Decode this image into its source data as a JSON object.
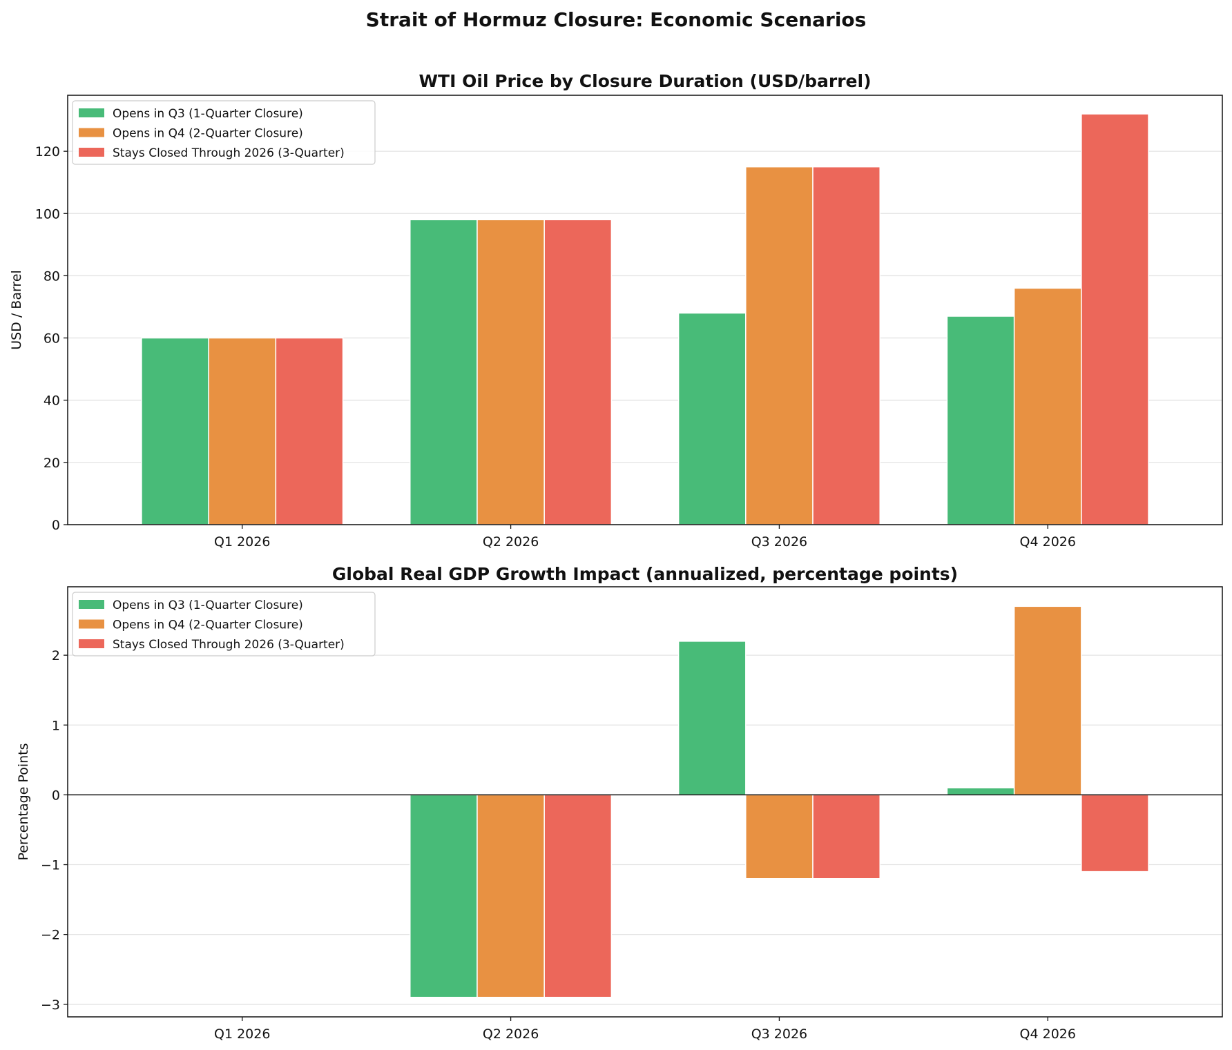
{
  "figure": {
    "title": "Strait of Hormuz Closure: Economic Scenarios"
  },
  "colors": {
    "green": "#48bb78",
    "orange": "#e89142",
    "red": "#ec675a"
  },
  "chart_data": [
    {
      "type": "bar",
      "title": "WTI Oil Price by Closure Duration (USD/barrel)",
      "xlabel": "",
      "ylabel": "USD / Barrel",
      "categories": [
        "Q1 2026",
        "Q2 2026",
        "Q3 2026",
        "Q4 2026"
      ],
      "ylim": [
        0,
        138
      ],
      "yticks": [
        0,
        20,
        40,
        60,
        80,
        100,
        120
      ],
      "grid": "horizontal",
      "legend": "top-left",
      "series": [
        {
          "name": "Opens in Q3 (1-Quarter Closure)",
          "color": "#48bb78",
          "values": [
            60,
            98,
            68,
            67
          ]
        },
        {
          "name": "Opens in Q4 (2-Quarter Closure)",
          "color": "#e89142",
          "values": [
            60,
            98,
            115,
            76
          ]
        },
        {
          "name": "Stays Closed Through 2026 (3-Quarter)",
          "color": "#ec675a",
          "values": [
            60,
            98,
            115,
            132
          ]
        }
      ]
    },
    {
      "type": "bar",
      "title": "Global Real GDP Growth Impact (annualized, percentage points)",
      "xlabel": "",
      "ylabel": "Percentage Points",
      "categories": [
        "Q1 2026",
        "Q2 2026",
        "Q3 2026",
        "Q4 2026"
      ],
      "ylim": [
        -3.18,
        2.98
      ],
      "yticks": [
        -3,
        -2,
        -1,
        0,
        1,
        2
      ],
      "grid": "horizontal",
      "zero_line": true,
      "legend": "top-left",
      "series": [
        {
          "name": "Opens in Q3 (1-Quarter Closure)",
          "color": "#48bb78",
          "values": [
            0,
            -2.9,
            2.2,
            0.1
          ]
        },
        {
          "name": "Opens in Q4 (2-Quarter Closure)",
          "color": "#e89142",
          "values": [
            0,
            -2.9,
            -1.2,
            2.7
          ]
        },
        {
          "name": "Stays Closed Through 2026 (3-Quarter)",
          "color": "#ec675a",
          "values": [
            0,
            -2.9,
            -1.2,
            -1.1
          ]
        }
      ]
    }
  ]
}
